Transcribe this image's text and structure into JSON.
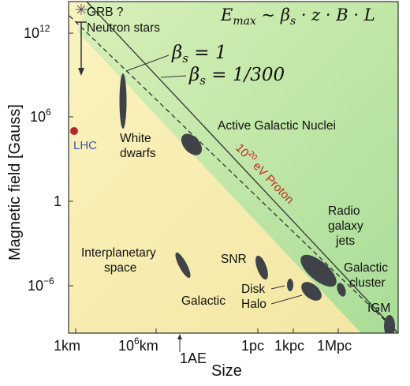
{
  "chart_data": {
    "type": "scatter",
    "title": "",
    "formula": "E_max ~ β_s · z · B · L",
    "xlabel": "Size",
    "ylabel": "Magnetic field [Gauss]",
    "x_ticks": [
      "1km",
      "10^6km",
      "1pc",
      "1kpc",
      "1Mpc"
    ],
    "x_tick_extra": "1AE",
    "y_ticks": [
      "10^12",
      "10^6",
      "1",
      "10^-6"
    ],
    "lines": [
      {
        "label": "β_s = 1",
        "style": "solid"
      },
      {
        "label": "β_s = 1/300",
        "style": "dashed"
      }
    ],
    "proton_label": "10^20 eV Proton",
    "sources": [
      {
        "name": "GRB ?",
        "x_log10_km": 0.2,
        "y_log10_gauss": 14.2
      },
      {
        "name": "Neutron stars",
        "x_log10_km": 0.2,
        "y_log10_gauss": 12.0
      },
      {
        "name": "White dwarfs",
        "x_log10_km": 4.5,
        "y_log10_gauss": 6.5
      },
      {
        "name": "Active Galactic Nuclei",
        "x_log10_km": 9.0,
        "y_log10_gauss": 3.5
      },
      {
        "name": "Interplanetary space",
        "x_log10_km": 8.0,
        "y_log10_gauss": -4.5
      },
      {
        "name": "SNR",
        "x_log10_km": 14.0,
        "y_log10_gauss": -4.5
      },
      {
        "name": "Disk",
        "x_log10_km": 15.5,
        "y_log10_gauss": -5.7
      },
      {
        "name": "Halo",
        "x_log10_km": 16.3,
        "y_log10_gauss": -6.2
      },
      {
        "name": "Galactic",
        "x_log10_km": 15.8,
        "y_log10_gauss": -6.0
      },
      {
        "name": "Radio galaxy jets",
        "x_log10_km": 17.3,
        "y_log10_gauss": -4.6
      },
      {
        "name": "Galactic cluster",
        "x_log10_km": 18.0,
        "y_log10_gauss": -6.1
      },
      {
        "name": "IGM",
        "x_log10_km": 21.0,
        "y_log10_gauss": -9.0
      },
      {
        "name": "LHC",
        "x_log10_km": 0.0,
        "y_log10_gauss": 4.5
      }
    ]
  },
  "labels": {
    "beta1": "β",
    "beta1_sub": "s",
    "beta1_rest": " = 1",
    "beta2": "β",
    "beta2_sub": "s",
    "beta2_rest": " = 1/300",
    "f_E": "E",
    "f_max": "max",
    "f_sim": " ~ β",
    "f_s": "s",
    "f_rest": " · z · B · L",
    "proton_base": "10",
    "proton_exp": "20",
    "proton_rest": " eV Proton",
    "grb": "GRB ?",
    "neutron": "Neutron stars",
    "white1": "White",
    "white2": "dwarfs",
    "agn": "Active Galactic Nuclei",
    "radio1": "Radio",
    "radio2": "galaxy",
    "radio3": "jets",
    "inter1": "Interplanetary",
    "inter2": "space",
    "snr": "SNR",
    "disk": "Disk",
    "halo": "Halo",
    "galactic": "Galactic",
    "cluster1": "Galactic",
    "cluster2": "cluster",
    "igm": "IGM",
    "lhc": "LHC",
    "y1_base": "10",
    "y1_exp": "12",
    "y2_base": "10",
    "y2_exp": "6",
    "y3": "1",
    "y4_base": "10",
    "y4_exp": "−6",
    "x1": "1km",
    "x2_base": "10",
    "x2_exp": "6",
    "x2_rest": "km",
    "x2b": "1AE",
    "x3": "1pc",
    "x4": "1kpc",
    "x5": "1Mpc"
  },
  "colors": {
    "yellow_region": "#f7efb0",
    "green_region": "#c9ecb0",
    "blob": "#3f4347",
    "lhc_dot": "#b3272d",
    "proton_text": "#c8281e",
    "lhc_text": "#3a55b8"
  }
}
